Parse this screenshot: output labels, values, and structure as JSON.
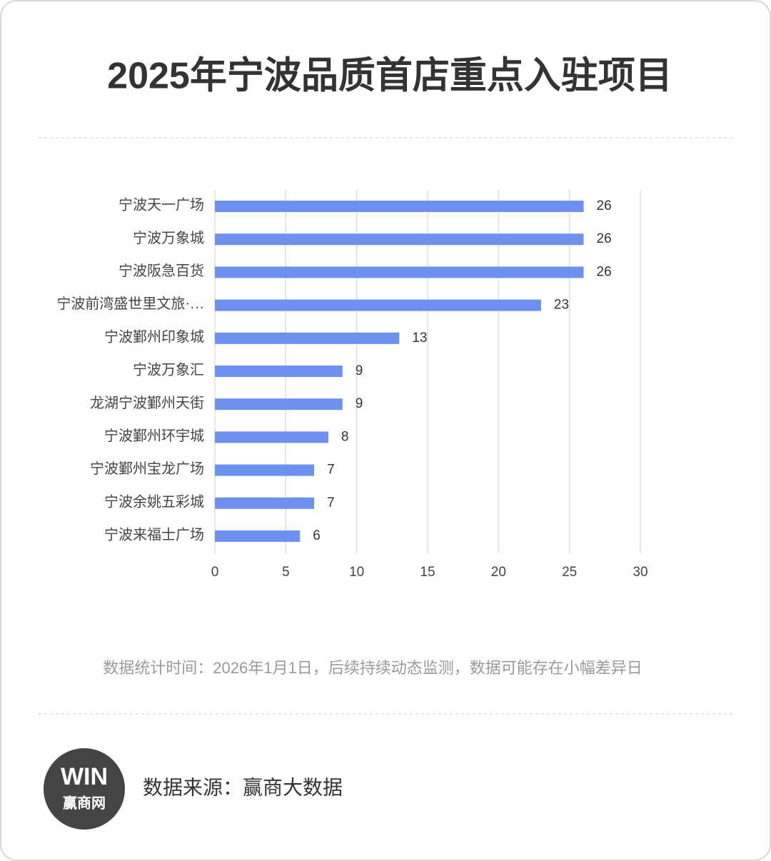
{
  "chart_data": {
    "type": "bar",
    "orientation": "horizontal",
    "title": "2025年宁波品质首店重点入驻项目",
    "categories": [
      "宁波天一广场",
      "宁波万象城",
      "宁波阪急百货",
      "宁波前湾盛世里文旅·…",
      "宁波鄞州印象城",
      "宁波万象汇",
      "龙湖宁波鄞州天街",
      "宁波鄞州环宇城",
      "宁波鄞州宝龙广场",
      "宁波余姚五彩城",
      "宁波来福士广场"
    ],
    "values": [
      26,
      26,
      26,
      23,
      13,
      9,
      9,
      8,
      7,
      7,
      6
    ],
    "color": "#6e91f0",
    "xlim": [
      0,
      30
    ],
    "xticks": [
      0,
      5,
      10,
      15,
      20,
      25,
      30
    ],
    "grid": true,
    "note": "数据统计时间：2026年1月1日，后续持续动态监测，数据可能存在小幅差异日",
    "source": "数据来源：赢商大数据",
    "logo": {
      "mark": "WIN",
      "name": "赢商网"
    }
  }
}
